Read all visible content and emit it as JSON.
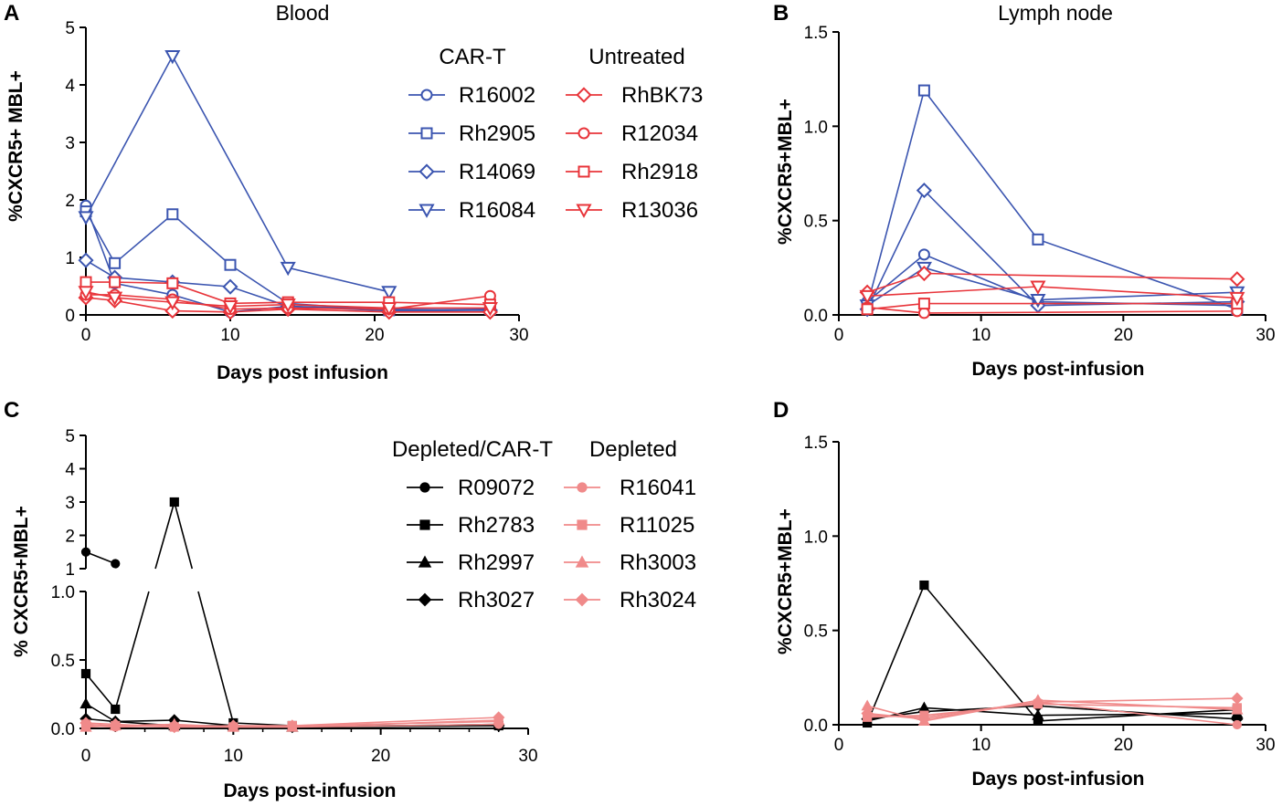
{
  "panels": [
    {
      "label": "A",
      "title": "Blood",
      "xlabel": "Days post infusion",
      "ylabel": "%CXCR5+ MBL+"
    },
    {
      "label": "B",
      "title": "Lymph node",
      "xlabel": "Days post-infusion",
      "ylabel": "%CXCR5+MBL+"
    },
    {
      "label": "C",
      "title": "",
      "xlabel": "Days post-infusion",
      "ylabel": "% CXCR5+MBL+"
    },
    {
      "label": "D",
      "title": "",
      "xlabel": "Days post-infusion",
      "ylabel": "%CXCR5+MBL+"
    }
  ],
  "legends": {
    "top_left_header": "CAR-T",
    "top_right_header": "Untreated",
    "bottom_left_header": "Depleted/CAR-T",
    "bottom_right_header": "Depleted"
  },
  "colors": {
    "blue": "#3b55b0",
    "red": "#e8343a",
    "pink": "#f08a8a",
    "black": "#000000"
  },
  "chart_data": [
    {
      "panel": "A",
      "type": "line",
      "title": "Blood",
      "xlabel": "Days post infusion",
      "ylabel": "%CXCR5+ MBL+",
      "xlim": [
        0,
        30
      ],
      "ylim": [
        0,
        5
      ],
      "xticks": [
        "0",
        "10",
        "20",
        "30"
      ],
      "yticks": [
        "0",
        "1",
        "2",
        "3",
        "4",
        "5"
      ],
      "series": [
        {
          "name": "R16002",
          "group": "CAR-T",
          "color": "#3b55b0",
          "marker": "circle-open",
          "x": [
            0,
            2,
            6,
            10,
            14,
            21,
            28
          ],
          "y": [
            1.9,
            0.55,
            0.35,
            0.05,
            0.15,
            0.07,
            0.08
          ]
        },
        {
          "name": "Rh2905",
          "group": "CAR-T",
          "color": "#3b55b0",
          "marker": "square-open",
          "x": [
            0,
            2,
            6,
            10,
            14,
            21,
            28
          ],
          "y": [
            1.8,
            0.9,
            1.75,
            0.87,
            0.2,
            0.08,
            0.1
          ]
        },
        {
          "name": "R14069",
          "group": "CAR-T",
          "color": "#3b55b0",
          "marker": "diamond-open",
          "x": [
            0,
            2,
            6,
            10,
            14,
            21,
            28
          ],
          "y": [
            0.95,
            0.65,
            0.57,
            0.49,
            0.15,
            0.1,
            0.08
          ]
        },
        {
          "name": "R16084",
          "group": "CAR-T",
          "color": "#3b55b0",
          "marker": "triangle-down-open",
          "x": [
            0,
            6,
            14,
            21
          ],
          "y": [
            1.7,
            4.5,
            0.82,
            0.4
          ]
        },
        {
          "name": "RhBK73",
          "group": "Untreated",
          "color": "#e8343a",
          "marker": "diamond-open",
          "x": [
            0,
            2,
            6,
            10,
            14,
            21,
            28
          ],
          "y": [
            0.3,
            0.25,
            0.07,
            0.05,
            0.1,
            0.05,
            0.05
          ]
        },
        {
          "name": "R12034",
          "group": "Untreated",
          "color": "#e8343a",
          "marker": "circle-open",
          "x": [
            0,
            2,
            6,
            10,
            14,
            21,
            28
          ],
          "y": [
            0.35,
            0.35,
            0.27,
            0.1,
            0.12,
            0.1,
            0.33
          ]
        },
        {
          "name": "Rh2918",
          "group": "Untreated",
          "color": "#e8343a",
          "marker": "square-open",
          "x": [
            0,
            2,
            6,
            10,
            14,
            21,
            28
          ],
          "y": [
            0.57,
            0.57,
            0.55,
            0.2,
            0.22,
            0.22,
            0.18
          ]
        },
        {
          "name": "R13036",
          "group": "Untreated",
          "color": "#e8343a",
          "marker": "triangle-down-open",
          "x": [
            0,
            2,
            6,
            10,
            14,
            21,
            28
          ],
          "y": [
            0.4,
            0.3,
            0.22,
            0.15,
            0.18,
            0.12,
            0.12
          ]
        }
      ]
    },
    {
      "panel": "B",
      "type": "line",
      "title": "Lymph node",
      "xlabel": "Days post-infusion",
      "ylabel": "%CXCR5+MBL+",
      "xlim": [
        0,
        30
      ],
      "ylim": [
        0,
        1.5
      ],
      "xticks": [
        "0",
        "10",
        "20",
        "30"
      ],
      "yticks": [
        "0.0",
        "0.5",
        "1.0",
        "1.5"
      ],
      "series": [
        {
          "name": "R16002",
          "group": "CAR-T",
          "color": "#3b55b0",
          "marker": "circle-open",
          "x": [
            2,
            6,
            14,
            28
          ],
          "y": [
            0.07,
            0.32,
            0.07,
            0.05
          ]
        },
        {
          "name": "Rh2905",
          "group": "CAR-T",
          "color": "#3b55b0",
          "marker": "square-open",
          "x": [
            2,
            6,
            14,
            28
          ],
          "y": [
            0.05,
            1.19,
            0.4,
            0.03
          ]
        },
        {
          "name": "R14069",
          "group": "CAR-T",
          "color": "#3b55b0",
          "marker": "diamond-open",
          "x": [
            2,
            6,
            14,
            28
          ],
          "y": [
            0.03,
            0.66,
            0.05,
            0.07
          ]
        },
        {
          "name": "R16084",
          "group": "CAR-T",
          "color": "#3b55b0",
          "marker": "triangle-down-open",
          "x": [
            2,
            6,
            14,
            28
          ],
          "y": [
            0.05,
            0.25,
            0.08,
            0.12
          ]
        },
        {
          "name": "RhBK73",
          "group": "Untreated",
          "color": "#e8343a",
          "marker": "diamond-open",
          "x": [
            2,
            6,
            28
          ],
          "y": [
            0.12,
            0.22,
            0.19
          ]
        },
        {
          "name": "R12034",
          "group": "Untreated",
          "color": "#e8343a",
          "marker": "circle-open",
          "x": [
            2,
            6,
            28
          ],
          "y": [
            0.04,
            0.01,
            0.02
          ]
        },
        {
          "name": "Rh2918",
          "group": "Untreated",
          "color": "#e8343a",
          "marker": "square-open",
          "x": [
            2,
            6,
            28
          ],
          "y": [
            0.03,
            0.06,
            0.06
          ]
        },
        {
          "name": "R13036",
          "group": "Untreated",
          "color": "#e8343a",
          "marker": "triangle-down-open",
          "x": [
            2,
            14,
            28
          ],
          "y": [
            0.1,
            0.15,
            0.09
          ]
        }
      ]
    },
    {
      "panel": "C",
      "type": "line",
      "title": "",
      "xlabel": "Days post-infusion",
      "ylabel": "% CXCR5+MBL+",
      "xlim": [
        0,
        30
      ],
      "ylim_lower": [
        0,
        1.0
      ],
      "ylim_upper": [
        1,
        5
      ],
      "xticks": [
        "0",
        "10",
        "20",
        "30"
      ],
      "yticks_lower": [
        "0.0",
        "0.5",
        "1.0"
      ],
      "yticks_upper": [
        "1",
        "2",
        "3",
        "4",
        "5"
      ],
      "series": [
        {
          "name": "R09072",
          "group": "Depleted/CAR-T",
          "color": "#000000",
          "marker": "circle-filled",
          "x": [
            0,
            2
          ],
          "y": [
            1.5,
            1.15
          ]
        },
        {
          "name": "Rh2783",
          "group": "Depleted/CAR-T",
          "color": "#000000",
          "marker": "square-filled",
          "x": [
            0,
            2,
            6,
            10,
            14,
            28
          ],
          "y": [
            0.4,
            0.14,
            3.0,
            0.04,
            0.02,
            0.02
          ]
        },
        {
          "name": "Rh2997",
          "group": "Depleted/CAR-T",
          "color": "#000000",
          "marker": "triangle-filled",
          "x": [
            0,
            2,
            6,
            10,
            14,
            28
          ],
          "y": [
            0.18,
            0.05,
            0.02,
            0.02,
            0.01,
            0.03
          ]
        },
        {
          "name": "Rh3027",
          "group": "Depleted/CAR-T",
          "color": "#000000",
          "marker": "diamond-filled",
          "x": [
            0,
            2,
            6,
            10,
            14,
            28
          ],
          "y": [
            0.07,
            0.05,
            0.06,
            0.02,
            0.01,
            0.02
          ]
        },
        {
          "name": "R16041",
          "group": "Depleted",
          "color": "#f08a8a",
          "marker": "circle-filled",
          "x": [
            0,
            2,
            6,
            10,
            14,
            28
          ],
          "y": [
            0.02,
            0.01,
            0.02,
            0.01,
            0.01,
            0.03
          ]
        },
        {
          "name": "R11025",
          "group": "Depleted",
          "color": "#f08a8a",
          "marker": "square-filled",
          "x": [
            0,
            2,
            6,
            10,
            14,
            28
          ],
          "y": [
            0.03,
            0.02,
            0.01,
            0.01,
            0.02,
            0.05
          ]
        },
        {
          "name": "Rh3003",
          "group": "Depleted",
          "color": "#f08a8a",
          "marker": "triangle-filled",
          "x": [
            0,
            2,
            6,
            10,
            14,
            28
          ],
          "y": [
            0.01,
            0.02,
            0.03,
            0.01,
            0.01,
            0.06
          ]
        },
        {
          "name": "Rh3024",
          "group": "Depleted",
          "color": "#f08a8a",
          "marker": "diamond-filled",
          "x": [
            0,
            2,
            6,
            10,
            14,
            28
          ],
          "y": [
            0.04,
            0.03,
            0.01,
            0.02,
            0.02,
            0.08
          ]
        }
      ]
    },
    {
      "panel": "D",
      "type": "line",
      "title": "",
      "xlabel": "Days post-infusion",
      "ylabel": "%CXCR5+MBL+",
      "xlim": [
        0,
        30
      ],
      "ylim": [
        0,
        1.5
      ],
      "xticks": [
        "0",
        "10",
        "20",
        "30"
      ],
      "yticks": [
        "0.0",
        "0.5",
        "1.0",
        "1.5"
      ],
      "series": [
        {
          "name": "Rh2783",
          "group": "Depleted/CAR-T",
          "color": "#000000",
          "marker": "square-filled",
          "x": [
            2,
            6,
            14,
            28
          ],
          "y": [
            0.01,
            0.74,
            0.02,
            0.08
          ]
        },
        {
          "name": "Rh2997",
          "group": "Depleted/CAR-T",
          "color": "#000000",
          "marker": "triangle-filled",
          "x": [
            2,
            6,
            14,
            28
          ],
          "y": [
            0.02,
            0.09,
            0.05,
            0.06
          ]
        },
        {
          "name": "Rh3027",
          "group": "Depleted/CAR-T",
          "color": "#000000",
          "marker": "diamond-filled",
          "x": [
            2,
            6,
            14,
            28
          ],
          "y": [
            0.03,
            0.07,
            0.1,
            0.03
          ]
        },
        {
          "name": "R16041",
          "group": "Depleted",
          "color": "#f08a8a",
          "marker": "circle-filled",
          "x": [
            2,
            6,
            14,
            28
          ],
          "y": [
            0.05,
            0.04,
            0.12,
            0.0
          ]
        },
        {
          "name": "R11025",
          "group": "Depleted",
          "color": "#f08a8a",
          "marker": "square-filled",
          "x": [
            2,
            6,
            14,
            28
          ],
          "y": [
            0.04,
            0.05,
            0.11,
            0.09
          ]
        },
        {
          "name": "Rh3003",
          "group": "Depleted",
          "color": "#f08a8a",
          "marker": "triangle-filled",
          "x": [
            2,
            6,
            14,
            28
          ],
          "y": [
            0.1,
            0.02,
            0.13,
            0.08
          ]
        },
        {
          "name": "Rh3024",
          "group": "Depleted",
          "color": "#f08a8a",
          "marker": "diamond-filled",
          "x": [
            2,
            6,
            14,
            28
          ],
          "y": [
            0.06,
            0.03,
            0.12,
            0.14
          ]
        }
      ]
    }
  ]
}
